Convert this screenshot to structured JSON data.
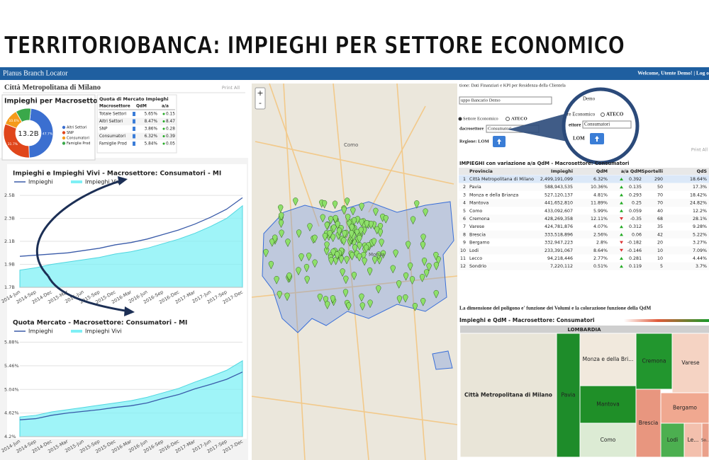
{
  "banner": {
    "title": "TERRITORIOBANCA: IMPIEGHI PER SETTORE ECONOMICO"
  },
  "header": {
    "app": "Planus Branch Locator",
    "user": "Welcome, Utente Demo! | Log o"
  },
  "left": {
    "title": "Città Metropolitana di Milano",
    "print": "Print All"
  },
  "donut": {
    "type": "pie",
    "title": "Impieghi per Macrosettore",
    "center": "13.2B",
    "categories": [
      "Altri Settori",
      "SNP",
      "Consumatori",
      "Famiglie Prod"
    ],
    "values": [
      47.7,
      31.7,
      10.6,
      10.0
    ],
    "value_labels": [
      "47.7%",
      "31.7%",
      "10.6%",
      null
    ],
    "colors": [
      "#3b6fd0",
      "#e0461b",
      "#f59a1a",
      "#3aa84a"
    ]
  },
  "qdm_table": {
    "title": "Quota di Mercato Impieghi",
    "columns": [
      "Macrosettore",
      "QdM",
      "a/a"
    ],
    "rows": [
      [
        "Totale Settori",
        "5.65%",
        "0.15"
      ],
      [
        "Altri Settori",
        "8.47%",
        "8.47"
      ],
      [
        "SNP",
        "3.86%",
        "0.28"
      ],
      [
        "Consumatori",
        "6.32%",
        "0.39"
      ],
      [
        "Famiglie Prod",
        "5.84%",
        "0.05"
      ]
    ]
  },
  "chart1": {
    "type": "line",
    "title": "Impieghi e Impieghi Vivi - Macrosettore: Consumatori - MI",
    "categories": [
      "2014-Jun",
      "2014-Sep",
      "2014-Dec",
      "2015-Mar",
      "2015-Jun",
      "2015-Sep",
      "2015-Dec",
      "2016-Mar",
      "2016-Jun",
      "2016-Sep",
      "2016-Dec",
      "2017-Mar",
      "2017-Jun",
      "2017-Sep",
      "2017-Dec"
    ],
    "series": [
      {
        "name": "Impieghi",
        "color": "#3a5ba9",
        "values": [
          1.97,
          1.98,
          1.99,
          2.0,
          2.02,
          2.04,
          2.07,
          2.09,
          2.12,
          2.16,
          2.2,
          2.25,
          2.31,
          2.38,
          2.48
        ]
      },
      {
        "name": "Impieghi Vivi",
        "color": "#7ff0f5",
        "values": [
          1.85,
          1.87,
          1.9,
          1.92,
          1.94,
          1.96,
          1.99,
          2.01,
          2.04,
          2.08,
          2.12,
          2.17,
          2.23,
          2.3,
          2.41
        ]
      }
    ],
    "ylim": [
      1.7,
      2.55
    ],
    "yticks": [
      {
        "value": 1.7,
        "label": "1.7B"
      },
      {
        "value": 1.9,
        "label": "1.9B"
      },
      {
        "value": 2.1,
        "label": "2.1B"
      },
      {
        "value": 2.3,
        "label": "2.3B"
      },
      {
        "value": 2.5,
        "label": "2.5B"
      }
    ]
  },
  "chart2": {
    "type": "line",
    "title": "Quota Mercato - Macrosettore: Consumatori - MI",
    "categories": [
      "2014-Jun",
      "2014-Sep",
      "2014-Dec",
      "2015-Mar",
      "2015-Jun",
      "2015-Sep",
      "2015-Dec",
      "2016-Mar",
      "2016-Jun",
      "2016-Sep",
      "2016-Dec",
      "2017-Mar",
      "2017-Jun",
      "2017-Sep",
      "2017-Dec"
    ],
    "series": [
      {
        "name": "Impieghi",
        "color": "#3a5ba9",
        "values": [
          4.5,
          4.52,
          4.58,
          4.62,
          4.65,
          4.68,
          4.72,
          4.75,
          4.8,
          4.88,
          4.95,
          5.05,
          5.13,
          5.22,
          5.35
        ]
      },
      {
        "name": "Impieghi Vivi",
        "color": "#7ff0f5",
        "values": [
          4.55,
          4.58,
          4.64,
          4.68,
          4.72,
          4.76,
          4.8,
          4.84,
          4.9,
          4.98,
          5.06,
          5.17,
          5.27,
          5.38,
          5.55
        ]
      }
    ],
    "ylim": [
      4.2,
      5.95
    ],
    "yticks": [
      {
        "value": 4.2,
        "label": "4.2%"
      },
      {
        "value": 4.62,
        "label": "4.62%"
      },
      {
        "value": 5.04,
        "label": "5.04%"
      },
      {
        "value": 5.46,
        "label": "5.46%"
      },
      {
        "value": 5.88,
        "label": "5.88%"
      }
    ]
  },
  "map": {
    "zoom_in": "+",
    "zoom_out": "-",
    "labels": [
      "Como",
      "Monza"
    ]
  },
  "filters": {
    "section": "tione: Dati Finanziari e KPI per Residenza della Clientela",
    "group": "uppo Bancario Demo",
    "radio1": "Settore Economico",
    "radio2": "ATECO",
    "macro_label": "dacrosettore",
    "macro_value": "Consumatori",
    "region": "Regione: LOM",
    "print": "Print All"
  },
  "zoom": {
    "group": "Demo",
    "radio1": "re Economico",
    "radio2": "ATECO",
    "macro_label": "ettore",
    "macro_value": "Consumatori",
    "region": "LOM"
  },
  "province_table": {
    "title": "IMPIEGHI con variazione a/a QdM - Macrosettore: Consumatori",
    "columns": [
      "Provincia",
      "Impieghi",
      "QdM",
      "a/a QdM",
      "Sportelli",
      "QdS"
    ],
    "rows": [
      [
        "1",
        "Città Metropolitana di Milano",
        "2,499,191,099",
        "6.32%",
        "0.392",
        "290",
        "18.64%"
      ],
      [
        "2",
        "Pavia",
        "588,943,535",
        "10.36%",
        "0.135",
        "50",
        "17.3%"
      ],
      [
        "3",
        "Monza e della Brianza",
        "527,120,137",
        "4.81%",
        "0.293",
        "70",
        "18.42%"
      ],
      [
        "4",
        "Mantova",
        "441,652,810",
        "11.89%",
        "0.25",
        "70",
        "24.82%"
      ],
      [
        "5",
        "Como",
        "433,092,607",
        "5.99%",
        "0.059",
        "40",
        "12.2%"
      ],
      [
        "6",
        "Cremona",
        "428,269,358",
        "12.11%",
        "-0.35",
        "68",
        "28.1%"
      ],
      [
        "7",
        "Varese",
        "424,781,876",
        "4.07%",
        "0.312",
        "35",
        "9.28%"
      ],
      [
        "8",
        "Brescia",
        "333,518,896",
        "2.56%",
        "0.06",
        "42",
        "5.22%"
      ],
      [
        "9",
        "Bergamo",
        "332,947,223",
        "2.8%",
        "-0.182",
        "20",
        "3.27%"
      ],
      [
        "10",
        "Lodi",
        "233,391,067",
        "8.64%",
        "-0.146",
        "10",
        "7.09%"
      ],
      [
        "11",
        "Lecco",
        "94,218,446",
        "2.77%",
        "0.281",
        "10",
        "4.44%"
      ],
      [
        "12",
        "Sondrio",
        "7,220,112",
        "0.51%",
        "0.119",
        "5",
        "3.7%"
      ]
    ]
  },
  "note": "La dimensione del poligono e' funzione dei Volumi e la colorazione funzione della QdM",
  "treemap": {
    "title": "Impieghi e QdM - Macrosettore: Consumatori",
    "root": "LOMBARDIA",
    "labels": [
      "Città Metropolitana di Milano",
      "Pavia",
      "Monza e della Bri...",
      "Mantova",
      "Como",
      "Cremona",
      "Varese",
      "Brescia",
      "Bergamo",
      "Lodi",
      "Le...",
      "So..."
    ],
    "colors": [
      "#e9e5d8",
      "#1e8c2a",
      "#f1e9dd",
      "#1f8f28",
      "#dcebd4",
      "#22962e",
      "#f5d3c3",
      "#e8967f",
      "#f0a890",
      "#4caf50",
      "#f3c0ad",
      "#eaa08a"
    ]
  }
}
